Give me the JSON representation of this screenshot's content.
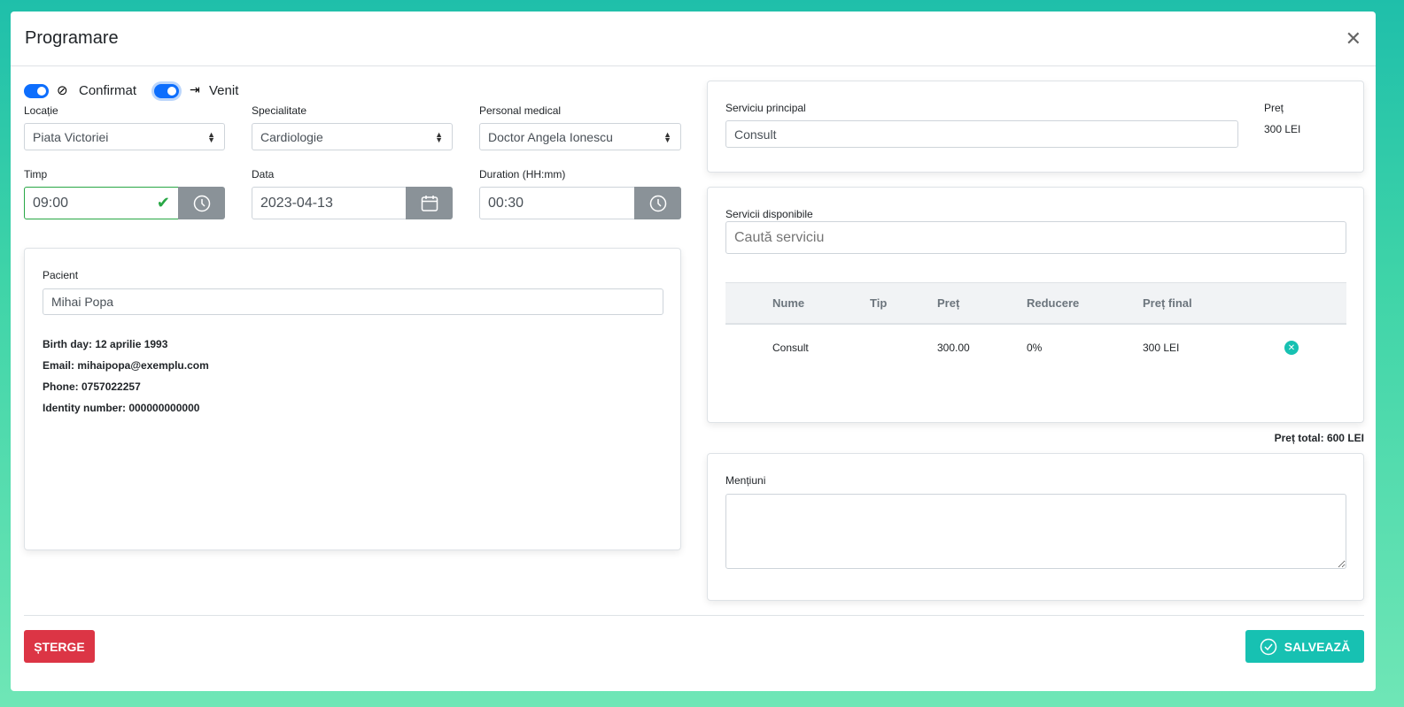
{
  "modal": {
    "title": "Programare"
  },
  "toggles": {
    "confirmed_label": "Confirmat",
    "arrived_label": "Venit"
  },
  "form": {
    "location_label": "Locație",
    "location_value": "Piata Victoriei",
    "specialty_label": "Specialitate",
    "specialty_value": "Cardiologie",
    "staff_label": "Personal medical",
    "staff_value": "Doctor Angela Ionescu",
    "time_label": "Timp",
    "time_value": "09:00",
    "date_label": "Data",
    "date_value": "2023-04-13",
    "duration_label": "Duration (HH:mm)",
    "duration_value": "00:30"
  },
  "patient": {
    "label": "Pacient",
    "value": "Mihai Popa",
    "birthday": "Birth day: 12 aprilie 1993",
    "email": "Email: mihaipopa@exemplu.com",
    "phone": "Phone: 0757022257",
    "identity": "Identity number: 000000000000"
  },
  "main_service": {
    "label": "Serviciu principal",
    "value": "Consult",
    "price_label": "Preț",
    "price_value": "300 LEI"
  },
  "services": {
    "label": "Servicii disponibile",
    "search_placeholder": "Caută serviciu",
    "columns": [
      "Nume",
      "Tip",
      "Preț",
      "Reducere",
      "Preț final"
    ],
    "rows": [
      {
        "name": "Consult",
        "type": "",
        "price": "300.00",
        "discount": "0%",
        "final": "300 LEI"
      }
    ],
    "total": "Preț total: 600 LEI"
  },
  "notes": {
    "label": "Mențiuni",
    "value": ""
  },
  "footer": {
    "delete_label": "ȘTERGE",
    "save_label": "SALVEAZĂ"
  },
  "colors": {
    "primary": "#0d6efd",
    "danger": "#dc3545",
    "accent": "#17c1b2",
    "success": "#28a745"
  }
}
